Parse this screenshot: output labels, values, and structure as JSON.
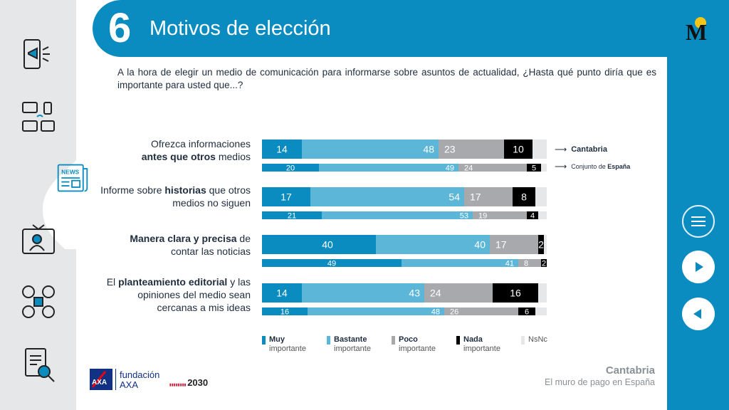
{
  "header": {
    "number": "6",
    "title": "Motivos de elección"
  },
  "question": "A la hora de elegir un medio de comunicación para informarse sobre asuntos de actualidad, ¿Hasta qué punto diría que es importante para usted que...?",
  "rows": [
    {
      "label_pre": "Ofrezca informaciones",
      "label_bold": "antes que otros",
      "label_post": " medios",
      "label_line1_bold": ""
    },
    {
      "label_pre": "Informe sobre ",
      "label_bold": "historias",
      "label_post": " que otros medios no siguen"
    },
    {
      "label_bold": "Manera clara y precisa",
      "label_post": " de contar las noticias"
    },
    {
      "label_pre": "El ",
      "label_bold": "planteamiento editorial",
      "label_post": " y las opiniones del medio sean cercanas a mis ideas"
    }
  ],
  "series_key": {
    "main": "Cantabria",
    "secondary_pre": "Conjunto de ",
    "secondary_bold": "España"
  },
  "legend": [
    {
      "bold": "Muy",
      "text": "importante",
      "color": "#0b8cc0"
    },
    {
      "bold": "Bastante",
      "text": "importante",
      "color": "#5bb6d8"
    },
    {
      "bold": "Poco",
      "text": "importante",
      "color": "#a7a9ac"
    },
    {
      "bold": "Nada",
      "text": "importante",
      "color": "#000000"
    },
    {
      "bold": "",
      "text": "NsNc",
      "color": "#e6e7e8"
    }
  ],
  "footer": {
    "region": "Cantabria",
    "subtitle": "El muro de pago en España"
  },
  "brand": {
    "foundation_line1": "fundación",
    "foundation_line2": "AXA",
    "agenda": "2030"
  },
  "chart_data": {
    "type": "bar",
    "stacked": true,
    "orientation": "horizontal",
    "categories": [
      "Ofrezca informaciones antes que otros medios",
      "Informe sobre historias que otros medios no siguen",
      "Manera clara y precisa de contar las noticias",
      "El planteamiento editorial y las opiniones del medio sean cercanas a mis ideas"
    ],
    "segments": [
      "Muy importante",
      "Bastante importante",
      "Poco importante",
      "Nada importante",
      "NsNc"
    ],
    "segment_colors": [
      "#0b8cc0",
      "#5bb6d8",
      "#a7a9ac",
      "#000000",
      "#e6e7e8"
    ],
    "series": [
      {
        "name": "Cantabria",
        "values": [
          [
            14,
            48,
            23,
            10,
            5
          ],
          [
            17,
            54,
            17,
            8,
            4
          ],
          [
            40,
            40,
            17,
            2,
            1
          ],
          [
            14,
            43,
            24,
            16,
            3
          ]
        ]
      },
      {
        "name": "Conjunto de España",
        "values": [
          [
            20,
            49,
            24,
            5,
            2
          ],
          [
            21,
            53,
            19,
            4,
            3
          ],
          [
            49,
            41,
            8,
            2,
            0
          ],
          [
            16,
            48,
            26,
            6,
            4
          ]
        ]
      }
    ],
    "labels": [
      [
        [
          14,
          48,
          23,
          10,
          null
        ],
        [
          20,
          49,
          24,
          5,
          null
        ]
      ],
      [
        [
          17,
          54,
          17,
          8,
          null
        ],
        [
          21,
          53,
          19,
          4,
          null
        ]
      ],
      [
        [
          40,
          40,
          17,
          2,
          null
        ],
        [
          49,
          41,
          8,
          2,
          null
        ]
      ],
      [
        [
          14,
          43,
          24,
          16,
          null
        ],
        [
          16,
          48,
          26,
          6,
          null
        ]
      ]
    ],
    "xlim": [
      0,
      100
    ]
  }
}
